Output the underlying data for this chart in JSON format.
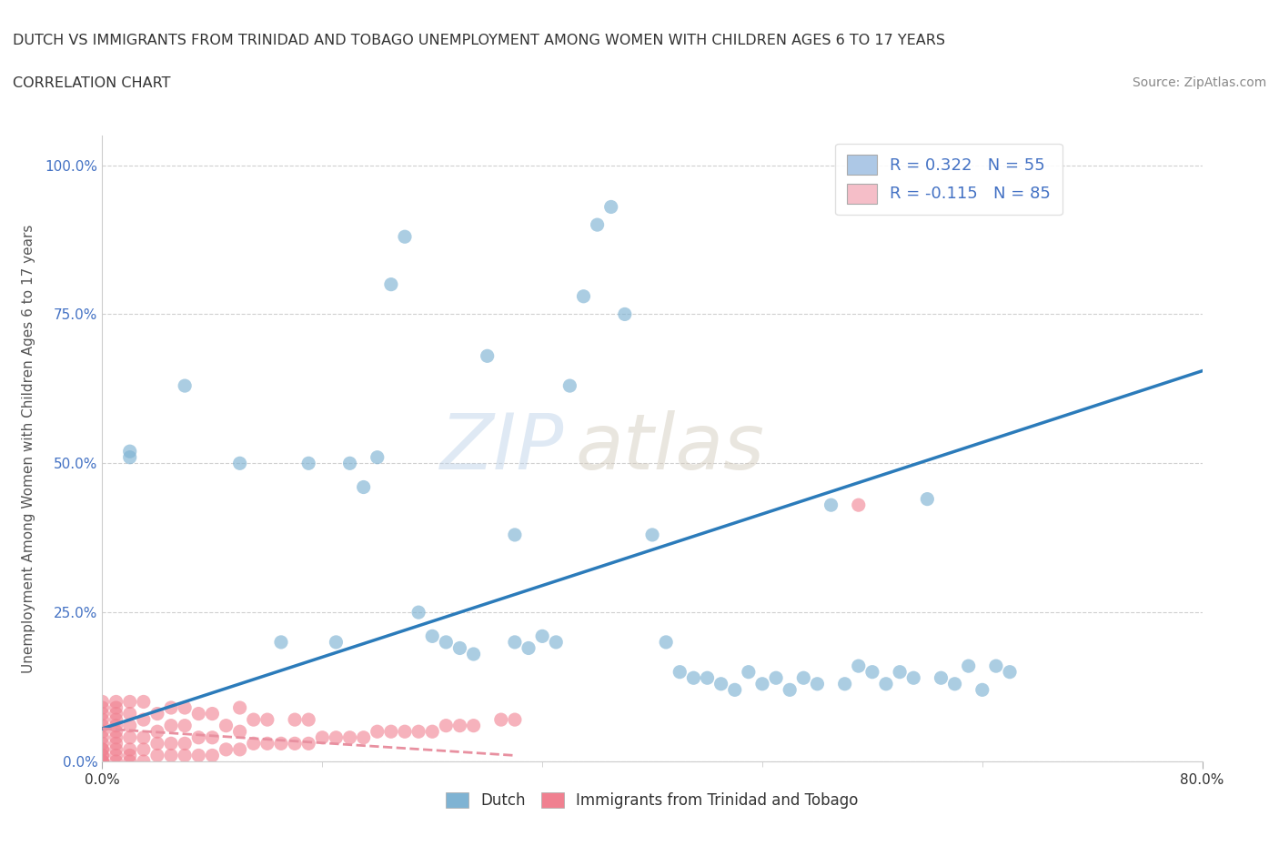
{
  "title_line1": "DUTCH VS IMMIGRANTS FROM TRINIDAD AND TOBAGO UNEMPLOYMENT AMONG WOMEN WITH CHILDREN AGES 6 TO 17 YEARS",
  "title_line2": "CORRELATION CHART",
  "source_text": "Source: ZipAtlas.com",
  "ylabel": "Unemployment Among Women with Children Ages 6 to 17 years",
  "xlim": [
    0.0,
    0.8
  ],
  "ylim": [
    0.0,
    1.05
  ],
  "ytick_labels": [
    "0.0%",
    "25.0%",
    "50.0%",
    "75.0%",
    "100.0%"
  ],
  "ytick_values": [
    0.0,
    0.25,
    0.5,
    0.75,
    1.0
  ],
  "xtick_values": [
    0.0,
    0.8
  ],
  "xtick_labels": [
    "0.0%",
    "80.0%"
  ],
  "legend_entries": [
    {
      "label": "R = 0.322   N = 55",
      "color": "#adc8e6"
    },
    {
      "label": "R = -0.115   N = 85",
      "color": "#f5bec8"
    }
  ],
  "legend_label_bottom": [
    "Dutch",
    "Immigrants from Trinidad and Tobago"
  ],
  "dutch_color": "#7fb3d3",
  "tt_color": "#f08090",
  "dutch_line_color": "#2b7bba",
  "tt_line_color": "#e890a0",
  "watermark_zip": "ZIP",
  "watermark_atlas": "atlas",
  "grid_color": "#d0d0d0",
  "background_color": "#ffffff",
  "dutch_x": [
    0.02,
    0.02,
    0.06,
    0.1,
    0.13,
    0.15,
    0.17,
    0.18,
    0.19,
    0.2,
    0.21,
    0.22,
    0.23,
    0.24,
    0.25,
    0.26,
    0.27,
    0.28,
    0.3,
    0.3,
    0.31,
    0.32,
    0.33,
    0.34,
    0.35,
    0.36,
    0.37,
    0.38,
    0.4,
    0.41,
    0.42,
    0.43,
    0.44,
    0.45,
    0.46,
    0.47,
    0.48,
    0.49,
    0.5,
    0.51,
    0.52,
    0.53,
    0.54,
    0.55,
    0.56,
    0.57,
    0.58,
    0.59,
    0.6,
    0.61,
    0.62,
    0.63,
    0.64,
    0.65,
    0.66
  ],
  "dutch_y": [
    0.51,
    0.52,
    0.63,
    0.5,
    0.2,
    0.5,
    0.2,
    0.5,
    0.46,
    0.51,
    0.8,
    0.88,
    0.25,
    0.21,
    0.2,
    0.19,
    0.18,
    0.68,
    0.38,
    0.2,
    0.19,
    0.21,
    0.2,
    0.63,
    0.78,
    0.9,
    0.93,
    0.75,
    0.38,
    0.2,
    0.15,
    0.14,
    0.14,
    0.13,
    0.12,
    0.15,
    0.13,
    0.14,
    0.12,
    0.14,
    0.13,
    0.43,
    0.13,
    0.16,
    0.15,
    0.13,
    0.15,
    0.14,
    0.44,
    0.14,
    0.13,
    0.16,
    0.12,
    0.16,
    0.15
  ],
  "tt_x": [
    0.0,
    0.0,
    0.0,
    0.0,
    0.0,
    0.0,
    0.0,
    0.0,
    0.0,
    0.0,
    0.0,
    0.0,
    0.0,
    0.0,
    0.0,
    0.01,
    0.01,
    0.01,
    0.01,
    0.01,
    0.01,
    0.01,
    0.01,
    0.01,
    0.01,
    0.01,
    0.02,
    0.02,
    0.02,
    0.02,
    0.02,
    0.02,
    0.02,
    0.03,
    0.03,
    0.03,
    0.03,
    0.03,
    0.04,
    0.04,
    0.04,
    0.04,
    0.05,
    0.05,
    0.05,
    0.05,
    0.06,
    0.06,
    0.06,
    0.06,
    0.07,
    0.07,
    0.07,
    0.08,
    0.08,
    0.08,
    0.09,
    0.09,
    0.1,
    0.1,
    0.1,
    0.11,
    0.11,
    0.12,
    0.12,
    0.13,
    0.14,
    0.14,
    0.15,
    0.15,
    0.16,
    0.17,
    0.18,
    0.19,
    0.2,
    0.21,
    0.22,
    0.23,
    0.24,
    0.25,
    0.26,
    0.27,
    0.29,
    0.3,
    0.55
  ],
  "tt_y": [
    0.0,
    0.0,
    0.0,
    0.01,
    0.01,
    0.02,
    0.02,
    0.03,
    0.04,
    0.05,
    0.06,
    0.07,
    0.08,
    0.09,
    0.1,
    0.0,
    0.01,
    0.02,
    0.03,
    0.04,
    0.05,
    0.06,
    0.07,
    0.08,
    0.09,
    0.1,
    0.0,
    0.01,
    0.02,
    0.04,
    0.06,
    0.08,
    0.1,
    0.0,
    0.02,
    0.04,
    0.07,
    0.1,
    0.01,
    0.03,
    0.05,
    0.08,
    0.01,
    0.03,
    0.06,
    0.09,
    0.01,
    0.03,
    0.06,
    0.09,
    0.01,
    0.04,
    0.08,
    0.01,
    0.04,
    0.08,
    0.02,
    0.06,
    0.02,
    0.05,
    0.09,
    0.03,
    0.07,
    0.03,
    0.07,
    0.03,
    0.03,
    0.07,
    0.03,
    0.07,
    0.04,
    0.04,
    0.04,
    0.04,
    0.05,
    0.05,
    0.05,
    0.05,
    0.05,
    0.06,
    0.06,
    0.06,
    0.07,
    0.07,
    0.43
  ],
  "dutch_line_x0": 0.0,
  "dutch_line_x1": 0.8,
  "dutch_line_y0": 0.055,
  "dutch_line_y1": 0.655,
  "tt_line_x0": 0.0,
  "tt_line_x1": 0.3,
  "tt_line_y0": 0.055,
  "tt_line_y1": 0.01
}
